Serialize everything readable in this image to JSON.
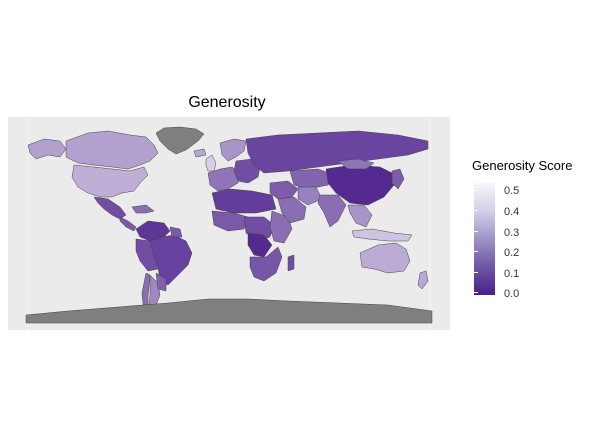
{
  "title": "Generosity",
  "legend": {
    "title": "Generosity Score",
    "ticks": [
      "0.5",
      "0.4",
      "0.3",
      "0.2",
      "0.1",
      "0.0"
    ]
  },
  "colors": {
    "panel_bg": "#ebebeb",
    "no_data": "#7f7f7f",
    "low": "#4b1e8a",
    "high": "#f7f6fc",
    "border": "#444444"
  },
  "regions": [
    {
      "id": "greenland",
      "score": null
    },
    {
      "id": "canada",
      "score": 0.33
    },
    {
      "id": "alaska",
      "score": 0.33
    },
    {
      "id": "usa",
      "score": 0.37
    },
    {
      "id": "mexico",
      "score": 0.12
    },
    {
      "id": "central-america",
      "score": 0.15
    },
    {
      "id": "caribbean",
      "score": 0.2
    },
    {
      "id": "colombia-venezuela",
      "score": 0.06
    },
    {
      "id": "brazil",
      "score": 0.09
    },
    {
      "id": "peru-bolivia",
      "score": 0.12
    },
    {
      "id": "chile",
      "score": 0.2
    },
    {
      "id": "argentina",
      "score": 0.27
    },
    {
      "id": "paraguay-uruguay",
      "score": 0.17
    },
    {
      "id": "guianas",
      "score": 0.15
    },
    {
      "id": "iceland",
      "score": 0.35
    },
    {
      "id": "uk-ireland",
      "score": 0.45
    },
    {
      "id": "scandinavia",
      "score": 0.3
    },
    {
      "id": "western-europe",
      "score": 0.22
    },
    {
      "id": "eastern-europe",
      "score": 0.12
    },
    {
      "id": "russia",
      "score": 0.1
    },
    {
      "id": "north-africa",
      "score": 0.08
    },
    {
      "id": "west-africa",
      "score": 0.15
    },
    {
      "id": "central-africa",
      "score": 0.12
    },
    {
      "id": "east-africa",
      "score": 0.2
    },
    {
      "id": "southern-africa",
      "score": 0.14
    },
    {
      "id": "dr-congo-region",
      "score": 0.03
    },
    {
      "id": "madagascar",
      "score": 0.12
    },
    {
      "id": "middle-east",
      "score": 0.16
    },
    {
      "id": "arabia",
      "score": 0.2
    },
    {
      "id": "central-asia",
      "score": 0.18
    },
    {
      "id": "iran",
      "score": 0.25
    },
    {
      "id": "india",
      "score": 0.2
    },
    {
      "id": "china",
      "score": 0.03
    },
    {
      "id": "mongolia",
      "score": 0.22
    },
    {
      "id": "southeast-asia",
      "score": 0.3
    },
    {
      "id": "indonesia",
      "score": 0.42
    },
    {
      "id": "japan-korea",
      "score": 0.16
    },
    {
      "id": "australia",
      "score": 0.36
    },
    {
      "id": "new-zealand",
      "score": 0.35
    },
    {
      "id": "antarctica",
      "score": null
    }
  ]
}
